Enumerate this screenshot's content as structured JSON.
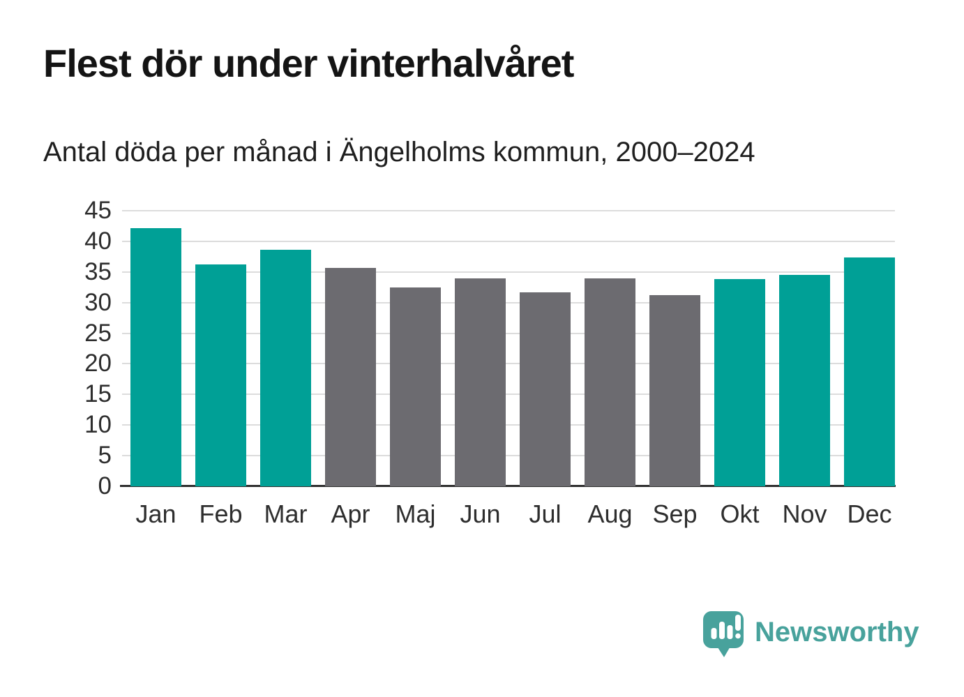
{
  "title": "Flest dör under vinterhalvåret",
  "subtitle": "Antal döda per månad i Ängelholms kommun, 2000–2024",
  "branding": {
    "logo_text": "Newsworthy",
    "logo_icon": "bar-chart-speech-bubble-icon",
    "logo_color": "#48a29c"
  },
  "colors": {
    "winter": "#00a096",
    "summer": "#6c6b70",
    "axis_line": "#2d2d2d",
    "grid": "#dcdcdc",
    "tick_text": "#2e2e2e",
    "title_text": "#141414"
  },
  "chart_data": {
    "type": "bar",
    "title": "Flest dör under vinterhalvåret",
    "subtitle": "Antal döda per månad i Ängelholms kommun, 2000–2024",
    "categories": [
      "Jan",
      "Feb",
      "Mar",
      "Apr",
      "Maj",
      "Jun",
      "Jul",
      "Aug",
      "Sep",
      "Okt",
      "Nov",
      "Dec"
    ],
    "values": [
      42.1,
      36.2,
      38.6,
      35.7,
      32.5,
      33.9,
      31.7,
      33.9,
      31.2,
      33.8,
      34.5,
      37.4
    ],
    "bar_colors": [
      "winter",
      "winter",
      "winter",
      "summer",
      "summer",
      "summer",
      "summer",
      "summer",
      "summer",
      "winter",
      "winter",
      "winter"
    ],
    "xlabel": "",
    "ylabel": "",
    "ylim": [
      0,
      45
    ],
    "yticks": [
      0,
      5,
      10,
      15,
      20,
      25,
      30,
      35,
      40,
      45
    ],
    "grid": "horizontal",
    "legend": "none"
  }
}
